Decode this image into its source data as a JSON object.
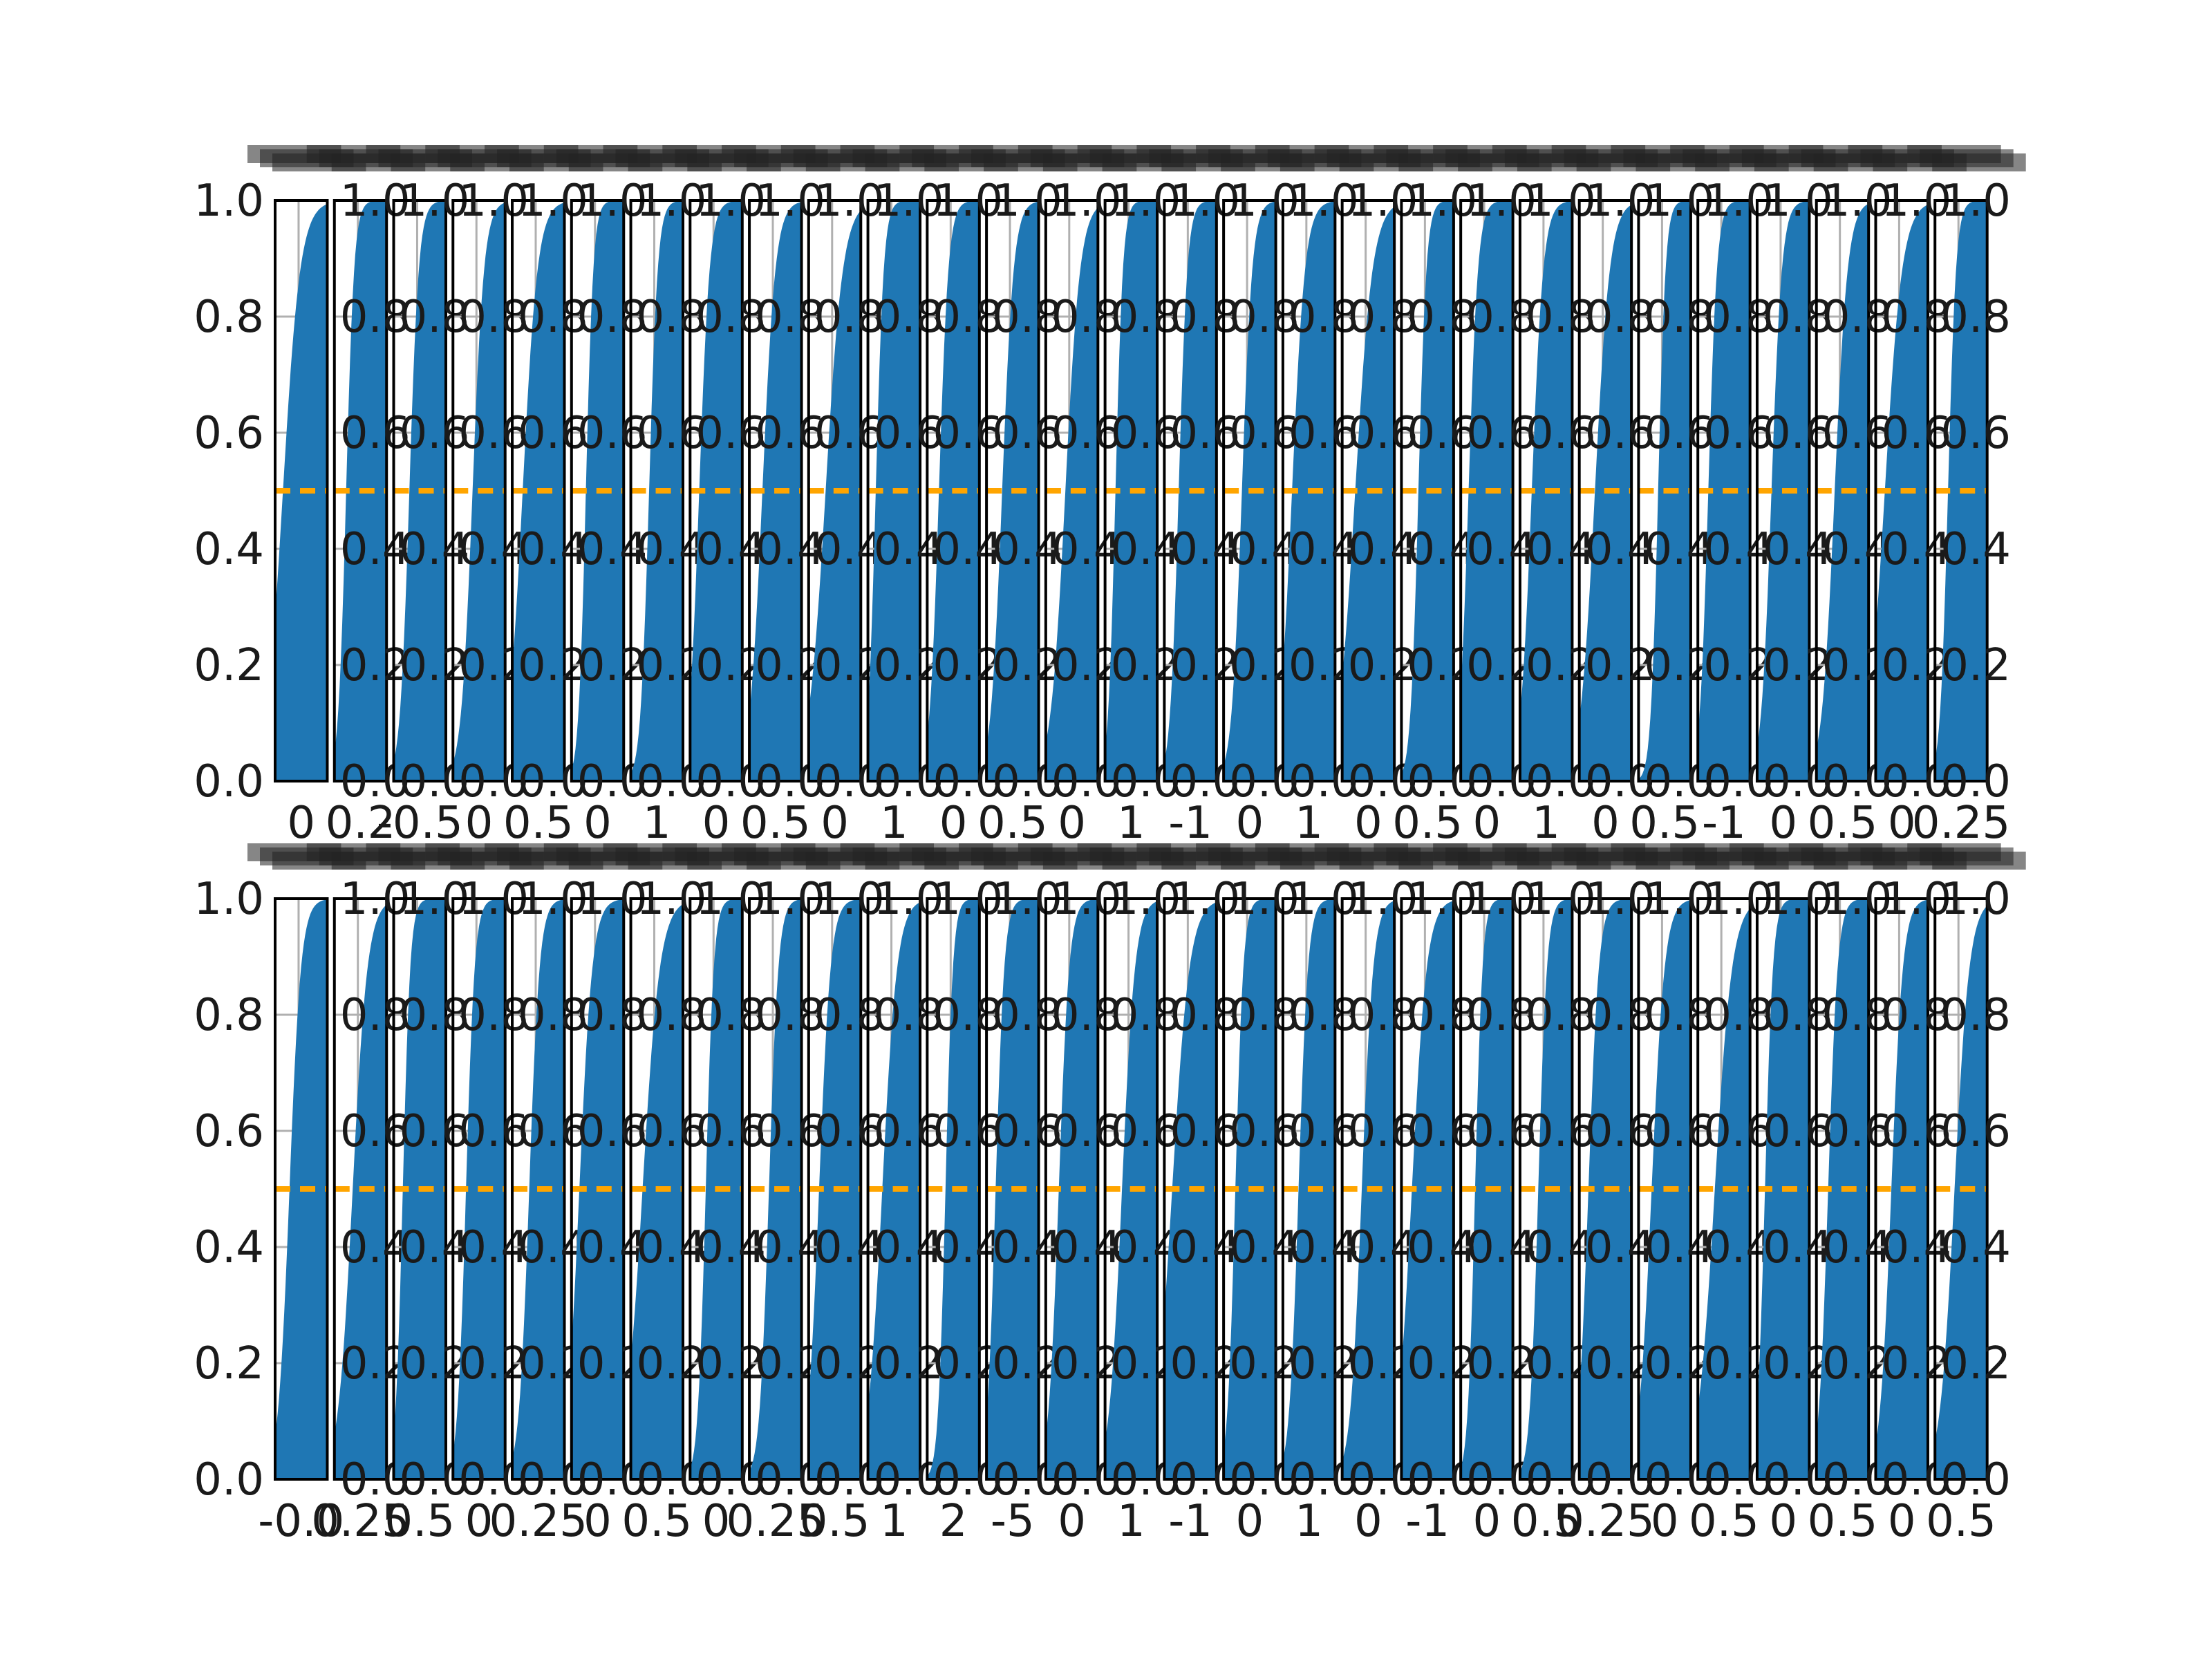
{
  "chart_data": [
    {
      "type": "bar",
      "rows": "top",
      "panel_count": 29,
      "title": "",
      "xlabel": "",
      "ylabel": "",
      "ylim": [
        0,
        1.0
      ],
      "yticks": [
        0.0,
        0.2,
        0.4,
        0.6,
        0.8,
        1.0
      ],
      "ytick_labels": [
        "0.0",
        "0.2",
        "0.4",
        "0.6",
        "0.8",
        "1.0"
      ],
      "reference_line": {
        "y": 0.5,
        "style": "dashed",
        "color": "#ffa500"
      },
      "bar_color": "#1f77b4",
      "grid": true,
      "xtick_labels": [
        "0",
        "0.2",
        "-0.5",
        "0",
        "0.5",
        "0",
        "1",
        "0",
        "0.5",
        "0",
        "1",
        "0",
        "0.5",
        "0",
        "1",
        "-1",
        "0",
        "1",
        "0",
        "0.5",
        "0",
        "1",
        "0",
        "0.5",
        "-1",
        "0",
        "0.5",
        "0",
        "0.25"
      ],
      "panels_note": "Each of the 29 narrow panels shows a sorted cumulative curve rising from 0.0 to 1.0; titles are illegible overlapping text."
    },
    {
      "type": "bar",
      "rows": "bottom",
      "panel_count": 29,
      "title": "",
      "xlabel": "",
      "ylabel": "",
      "ylim": [
        0,
        1.0
      ],
      "yticks": [
        0.0,
        0.2,
        0.4,
        0.6,
        0.8,
        1.0
      ],
      "ytick_labels": [
        "0.0",
        "0.2",
        "0.4",
        "0.6",
        "0.8",
        "1.0"
      ],
      "reference_line": {
        "y": 0.5,
        "style": "dashed",
        "color": "#ffa500"
      },
      "bar_color": "#1f77b4",
      "grid": true,
      "xtick_labels": [
        "-0.0",
        "0.25",
        "0.5",
        "0",
        "0.25",
        "0",
        "0.5",
        "0",
        "0.25",
        "0.5",
        "1",
        "2",
        "-5",
        "0",
        "1",
        "-1",
        "0",
        "1",
        "0",
        "-1",
        "0",
        "0.5",
        "0.25",
        "0",
        "0.5",
        "0",
        "0.5",
        "0",
        "0.5"
      ],
      "panels_note": "Each of the 29 narrow panels shows a cumulative fraction rising from 0.0 to 1.0."
    }
  ]
}
